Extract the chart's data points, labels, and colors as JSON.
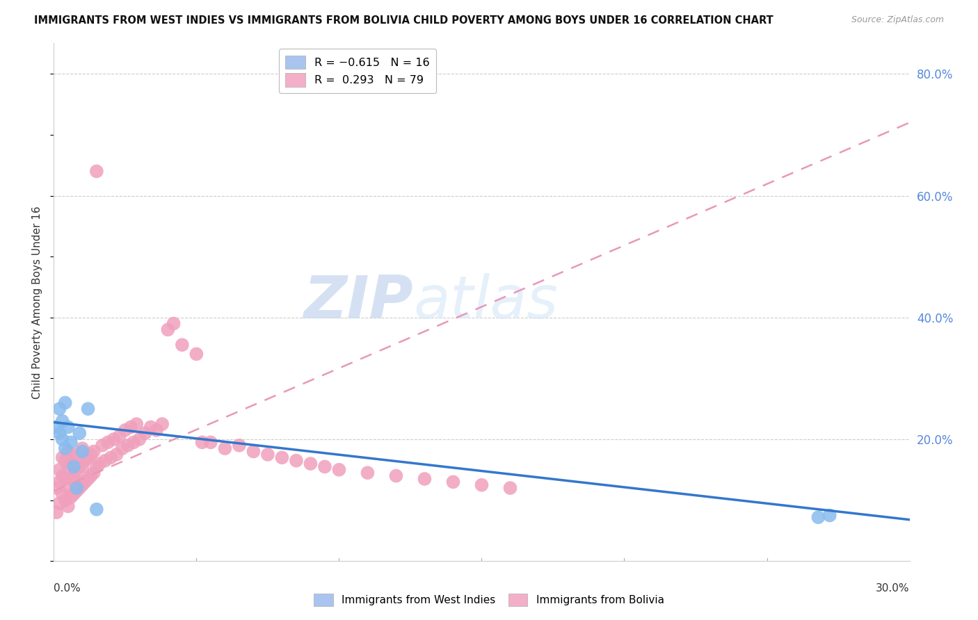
{
  "title": "IMMIGRANTS FROM WEST INDIES VS IMMIGRANTS FROM BOLIVIA CHILD POVERTY AMONG BOYS UNDER 16 CORRELATION CHART",
  "source": "Source: ZipAtlas.com",
  "ylabel": "Child Poverty Among Boys Under 16",
  "ytick_labels": [
    "80.0%",
    "60.0%",
    "40.0%",
    "20.0%"
  ],
  "ytick_values": [
    0.8,
    0.6,
    0.4,
    0.2
  ],
  "legend_color1": "#aac4f0",
  "legend_color2": "#f4afc8",
  "watermark": "ZIPatlas",
  "watermark_color": "#d0e0f5",
  "xmin": 0.0,
  "xmax": 0.3,
  "ymin": 0.0,
  "ymax": 0.85,
  "blue_color": "#88bbee",
  "pink_color": "#f0a0bc",
  "trend_blue_color": "#3377cc",
  "trend_pink_color": "#e898b8",
  "wi_trend_x0": 0.0,
  "wi_trend_y0": 0.228,
  "wi_trend_x1": 0.3,
  "wi_trend_y1": 0.068,
  "bol_trend_x0": 0.0,
  "bol_trend_y0": 0.115,
  "bol_trend_x1": 0.3,
  "bol_trend_y1": 0.72,
  "west_indies_x": [
    0.001,
    0.002,
    0.002,
    0.003,
    0.003,
    0.004,
    0.004,
    0.005,
    0.006,
    0.007,
    0.008,
    0.009,
    0.01,
    0.012,
    0.015,
    0.268,
    0.272
  ],
  "west_indies_y": [
    0.22,
    0.25,
    0.21,
    0.2,
    0.23,
    0.185,
    0.26,
    0.22,
    0.195,
    0.155,
    0.12,
    0.21,
    0.18,
    0.25,
    0.085,
    0.072,
    0.075
  ],
  "bolivia_x": [
    0.001,
    0.001,
    0.002,
    0.002,
    0.002,
    0.003,
    0.003,
    0.003,
    0.004,
    0.004,
    0.004,
    0.005,
    0.005,
    0.005,
    0.005,
    0.006,
    0.006,
    0.006,
    0.007,
    0.007,
    0.007,
    0.008,
    0.008,
    0.008,
    0.009,
    0.009,
    0.01,
    0.01,
    0.01,
    0.011,
    0.011,
    0.012,
    0.012,
    0.013,
    0.013,
    0.014,
    0.014,
    0.015,
    0.015,
    0.016,
    0.017,
    0.018,
    0.019,
    0.02,
    0.021,
    0.022,
    0.023,
    0.024,
    0.025,
    0.026,
    0.027,
    0.028,
    0.029,
    0.03,
    0.032,
    0.034,
    0.036,
    0.038,
    0.04,
    0.042,
    0.045,
    0.05,
    0.052,
    0.055,
    0.06,
    0.065,
    0.07,
    0.075,
    0.08,
    0.085,
    0.09,
    0.095,
    0.1,
    0.11,
    0.12,
    0.13,
    0.14,
    0.15,
    0.16
  ],
  "bolivia_y": [
    0.08,
    0.12,
    0.095,
    0.13,
    0.15,
    0.11,
    0.14,
    0.17,
    0.1,
    0.135,
    0.165,
    0.09,
    0.12,
    0.15,
    0.18,
    0.105,
    0.135,
    0.16,
    0.11,
    0.14,
    0.17,
    0.115,
    0.145,
    0.175,
    0.12,
    0.155,
    0.125,
    0.155,
    0.185,
    0.13,
    0.165,
    0.135,
    0.17,
    0.14,
    0.175,
    0.145,
    0.18,
    0.155,
    0.64,
    0.16,
    0.19,
    0.165,
    0.195,
    0.17,
    0.2,
    0.175,
    0.205,
    0.185,
    0.215,
    0.19,
    0.22,
    0.195,
    0.225,
    0.2,
    0.21,
    0.22,
    0.215,
    0.225,
    0.38,
    0.39,
    0.355,
    0.34,
    0.195,
    0.195,
    0.185,
    0.19,
    0.18,
    0.175,
    0.17,
    0.165,
    0.16,
    0.155,
    0.15,
    0.145,
    0.14,
    0.135,
    0.13,
    0.125,
    0.12
  ]
}
